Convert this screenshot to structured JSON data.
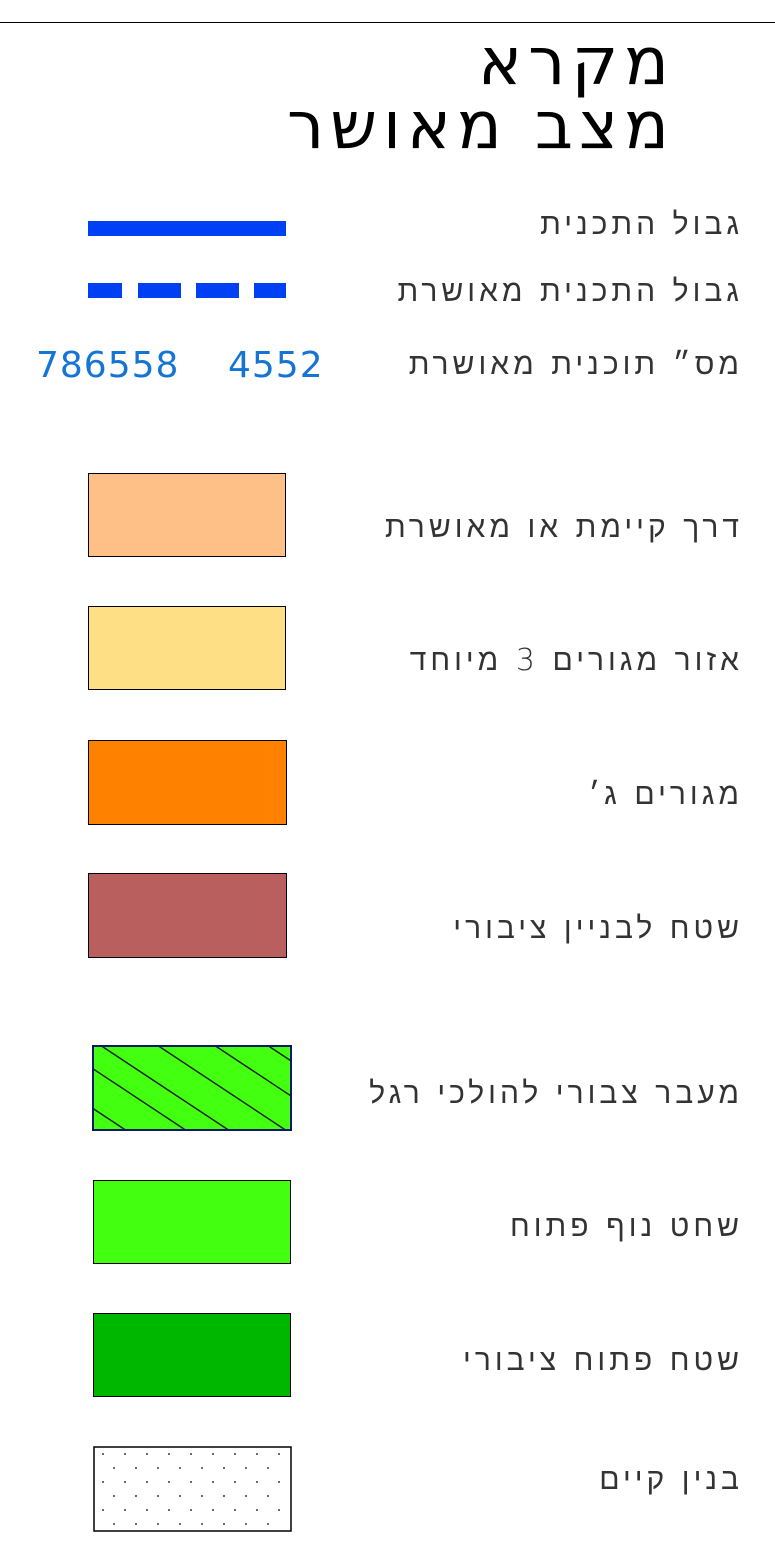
{
  "title": {
    "line1": "מקרא",
    "line2": "מצב מאושר"
  },
  "colors": {
    "plan_boundary": "#0040f5",
    "plan_number": "#1574d4",
    "road": "#fec086",
    "residential_3_special": "#fedf85",
    "residential_c": "#fe8100",
    "public_building": "#b95f5e",
    "pedestrian_passage": "#43ff10",
    "open_landscape": "#43ff10",
    "public_open_space": "#00b700",
    "existing_building": "#ffffff"
  },
  "legend": {
    "plan_boundary": "גבול התכנית",
    "approved_plan_boundary": "גבול התכנית מאושרת",
    "approved_plan_number_label": "מס״ תוכנית מאושרת",
    "approved_plan_numbers": [
      "786558",
      "4552"
    ],
    "road": "דרך קיימת או מאושרת",
    "residential_3_special": "אזור מגורים 3 מיוחד",
    "residential_c": "מגורים ג׳",
    "public_building": "שטח לבניין ציבורי",
    "pedestrian_passage": "מעבר צבורי להולכי רגל",
    "open_landscape": "שחט נוף פתוח",
    "public_open_space": "שטח פתוח ציבורי",
    "existing_building": "בנין קיים"
  }
}
